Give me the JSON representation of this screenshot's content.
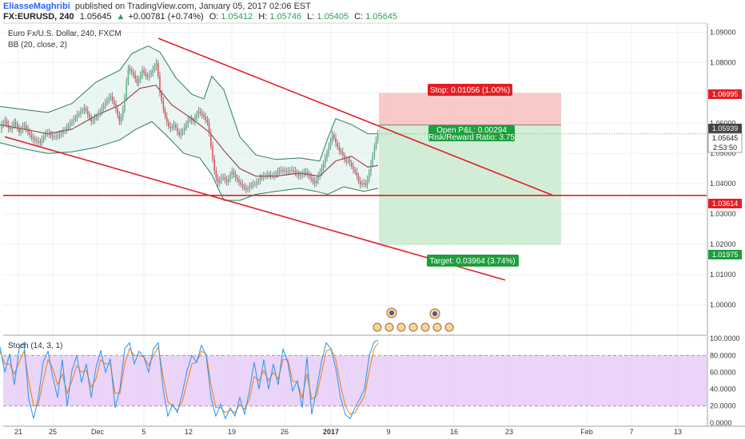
{
  "header": {
    "author": "EliasseMaghribi",
    "published_text": "published on TradingView.com, January 05, 2017 02:06 EST",
    "symbol": "FX:EURUSD, 240",
    "last": "1.05645",
    "change": "+0.00781 (+0.74%)",
    "o_label": "O:",
    "o": "1.05412",
    "h_label": "H:",
    "h": "1.05746",
    "l_label": "L:",
    "l": "1.05405",
    "c_label": "C:",
    "c": "1.05645"
  },
  "legend": {
    "main": "Euro Fx/U.S. Dollar, 240, FXCM",
    "bb": "BB (20, close, 2)",
    "stoch": "Stoch (14, 3, 1)"
  },
  "position": {
    "stop_label": "Stop: 0.01056 (1.00%)",
    "pl_label": "Open P&L: 0.00294",
    "rr_label": "Risk/Reward Ratio: 3.75",
    "target_label": "Target: 0.03964 (3.74%)"
  },
  "price_tags": {
    "stop": "1.06995",
    "entry": "1.05939",
    "last": "1.05645",
    "timer": "2:53:50",
    "support": "1.03614",
    "target": "1.01975"
  },
  "colors": {
    "up": "#53b987",
    "down": "#eb4d5c",
    "red": "#e31e24",
    "band": "#2e7d57",
    "mid": "#8b2c2c",
    "stop_fill": "#f8c3c3",
    "target_fill": "#cdebd0",
    "stoch_fill": "#e6cdf7",
    "k_line": "#2196f3",
    "d_line": "#f57c00"
  },
  "chart_data": [
    {
      "type": "candlestick",
      "title": "Euro Fx/U.S. Dollar, 240, FXCM",
      "ylim": [
        0.99,
        1.093
      ],
      "y_ticks": [
        1.0,
        1.01,
        1.02,
        1.03,
        1.04,
        1.05,
        1.06,
        1.07,
        1.08,
        1.09
      ],
      "y_tick_labels": [
        "1.00000",
        "1.01000",
        "1.02000",
        "1.03000",
        "1.04000",
        "1.05000",
        "1.06000",
        "1.07000",
        "1.08000",
        "1.09000"
      ],
      "x_ticks": [
        "21",
        "25",
        "Dec",
        "5",
        "12",
        "19",
        "26",
        "2017",
        "9",
        "16",
        "23",
        "Feb",
        "7",
        "13"
      ],
      "close_path": [
        [
          0,
          1.0585
        ],
        [
          6,
          1.061
        ],
        [
          12,
          1.0575
        ],
        [
          18,
          1.0605
        ],
        [
          24,
          1.057
        ],
        [
          30,
          1.0595
        ],
        [
          36,
          1.0565
        ],
        [
          42,
          1.0545
        ],
        [
          50,
          1.0535
        ],
        [
          58,
          1.057
        ],
        [
          66,
          1.0555
        ],
        [
          74,
          1.056
        ],
        [
          82,
          1.058
        ],
        [
          90,
          1.0605
        ],
        [
          98,
          1.063
        ],
        [
          106,
          1.065
        ],
        [
          114,
          1.0605
        ],
        [
          122,
          1.0625
        ],
        [
          130,
          1.066
        ],
        [
          138,
          1.069
        ],
        [
          144,
          1.0655
        ],
        [
          150,
          1.06
        ],
        [
          155,
          1.066
        ],
        [
          160,
          1.078
        ],
        [
          166,
          1.0765
        ],
        [
          172,
          1.073
        ],
        [
          178,
          1.0775
        ],
        [
          184,
          1.075
        ],
        [
          190,
          1.077
        ],
        [
          196,
          1.08
        ],
        [
          200,
          1.07
        ],
        [
          206,
          1.0625
        ],
        [
          212,
          1.058
        ],
        [
          218,
          1.0595
        ],
        [
          224,
          1.056
        ],
        [
          230,
          1.058
        ],
        [
          236,
          1.0615
        ],
        [
          242,
          1.0605
        ],
        [
          248,
          1.064
        ],
        [
          254,
          1.0625
        ],
        [
          260,
          1.06
        ],
        [
          264,
          1.052
        ],
        [
          268,
          1.0445
        ],
        [
          272,
          1.04
        ],
        [
          278,
          1.0425
        ],
        [
          284,
          1.0405
        ],
        [
          290,
          1.044
        ],
        [
          296,
          1.0415
        ],
        [
          302,
          1.0395
        ],
        [
          308,
          1.038
        ],
        [
          314,
          1.0395
        ],
        [
          320,
          1.04
        ],
        [
          326,
          1.042
        ],
        [
          334,
          1.043
        ],
        [
          342,
          1.0425
        ],
        [
          350,
          1.0445
        ],
        [
          358,
          1.044
        ],
        [
          366,
          1.0445
        ],
        [
          374,
          1.0425
        ],
        [
          382,
          1.044
        ],
        [
          388,
          1.042
        ],
        [
          394,
          1.04
        ],
        [
          398,
          1.0425
        ],
        [
          404,
          1.046
        ],
        [
          410,
          1.051
        ],
        [
          416,
          1.0565
        ],
        [
          420,
          1.0535
        ],
        [
          424,
          1.051
        ],
        [
          428,
          1.05
        ],
        [
          432,
          1.047
        ],
        [
          436,
          1.048
        ],
        [
          440,
          1.0455
        ],
        [
          446,
          1.043
        ],
        [
          450,
          1.0395
        ],
        [
          454,
          1.0405
        ],
        [
          458,
          1.0395
        ],
        [
          462,
          1.044
        ],
        [
          466,
          1.049
        ],
        [
          470,
          1.054
        ],
        [
          473,
          1.05645
        ]
      ],
      "bb_upper": [
        [
          0,
          1.0655
        ],
        [
          30,
          1.0645
        ],
        [
          60,
          1.0635
        ],
        [
          90,
          1.0665
        ],
        [
          120,
          1.0735
        ],
        [
          150,
          1.0775
        ],
        [
          165,
          1.083
        ],
        [
          185,
          1.0855
        ],
        [
          200,
          1.0835
        ],
        [
          220,
          1.075
        ],
        [
          240,
          1.0695
        ],
        [
          255,
          1.068
        ],
        [
          265,
          1.0755
        ],
        [
          280,
          1.071
        ],
        [
          300,
          1.0555
        ],
        [
          320,
          1.0495
        ],
        [
          345,
          1.048
        ],
        [
          375,
          1.0485
        ],
        [
          400,
          1.0475
        ],
        [
          410,
          1.055
        ],
        [
          420,
          1.0615
        ],
        [
          440,
          1.0595
        ],
        [
          460,
          1.0565
        ],
        [
          473,
          1.0565
        ]
      ],
      "bb_lower": [
        [
          0,
          1.0535
        ],
        [
          30,
          1.0515
        ],
        [
          60,
          1.05
        ],
        [
          90,
          1.0505
        ],
        [
          120,
          1.052
        ],
        [
          150,
          1.0545
        ],
        [
          170,
          1.058
        ],
        [
          190,
          1.0605
        ],
        [
          210,
          1.0555
        ],
        [
          230,
          1.05
        ],
        [
          250,
          1.0485
        ],
        [
          265,
          1.043
        ],
        [
          280,
          1.0345
        ],
        [
          300,
          1.0345
        ],
        [
          320,
          1.0365
        ],
        [
          345,
          1.0375
        ],
        [
          375,
          1.0385
        ],
        [
          395,
          1.0375
        ],
        [
          410,
          1.0365
        ],
        [
          430,
          1.039
        ],
        [
          455,
          1.0375
        ],
        [
          473,
          1.0385
        ]
      ],
      "bb_mid": [
        [
          0,
          1.0595
        ],
        [
          30,
          1.058
        ],
        [
          60,
          1.0565
        ],
        [
          90,
          1.058
        ],
        [
          120,
          1.0625
        ],
        [
          150,
          1.066
        ],
        [
          175,
          1.0715
        ],
        [
          195,
          1.0725
        ],
        [
          215,
          1.066
        ],
        [
          240,
          1.0615
        ],
        [
          262,
          1.057
        ],
        [
          280,
          1.051
        ],
        [
          300,
          1.045
        ],
        [
          320,
          1.0425
        ],
        [
          345,
          1.0425
        ],
        [
          375,
          1.0435
        ],
        [
          400,
          1.0425
        ],
        [
          420,
          1.0475
        ],
        [
          440,
          1.049
        ],
        [
          460,
          1.0455
        ],
        [
          473,
          1.046
        ]
      ],
      "trendlines": [
        {
          "from": [
            198,
            1.088
          ],
          "to": [
            692,
            1.03614
          ]
        },
        {
          "from": [
            6,
            1.0555
          ],
          "to": [
            632,
            1.0082
          ]
        },
        {
          "horizontal": 1.03614
        }
      ],
      "position": {
        "entry": 1.05939,
        "stop": 1.06995,
        "target": 1.01975,
        "start_x": 474,
        "end_x": 702
      }
    },
    {
      "type": "line",
      "title": "Stoch (14, 3, 1)",
      "ylim": [
        -4,
        104
      ],
      "y_ticks": [
        0,
        20,
        40,
        60,
        80,
        100
      ],
      "y_tick_labels": [
        "0.0000",
        "20.0000",
        "40.0000",
        "60.0000",
        "80.0000",
        "100.0000"
      ],
      "levels": [
        20,
        80
      ],
      "k": [
        [
          0,
          90
        ],
        [
          6,
          60
        ],
        [
          12,
          82
        ],
        [
          18,
          45
        ],
        [
          24,
          88
        ],
        [
          30,
          95
        ],
        [
          36,
          28
        ],
        [
          42,
          5
        ],
        [
          48,
          30
        ],
        [
          54,
          72
        ],
        [
          60,
          85
        ],
        [
          66,
          55
        ],
        [
          72,
          30
        ],
        [
          78,
          75
        ],
        [
          84,
          20
        ],
        [
          90,
          62
        ],
        [
          96,
          80
        ],
        [
          102,
          48
        ],
        [
          108,
          70
        ],
        [
          114,
          30
        ],
        [
          120,
          65
        ],
        [
          126,
          86
        ],
        [
          132,
          60
        ],
        [
          138,
          76
        ],
        [
          144,
          18
        ],
        [
          150,
          40
        ],
        [
          156,
          88
        ],
        [
          162,
          95
        ],
        [
          168,
          70
        ],
        [
          174,
          85
        ],
        [
          180,
          78
        ],
        [
          186,
          60
        ],
        [
          192,
          88
        ],
        [
          198,
          95
        ],
        [
          204,
          40
        ],
        [
          210,
          8
        ],
        [
          216,
          22
        ],
        [
          222,
          12
        ],
        [
          228,
          35
        ],
        [
          234,
          62
        ],
        [
          240,
          80
        ],
        [
          246,
          72
        ],
        [
          252,
          92
        ],
        [
          258,
          80
        ],
        [
          264,
          30
        ],
        [
          270,
          8
        ],
        [
          276,
          22
        ],
        [
          282,
          5
        ],
        [
          288,
          18
        ],
        [
          294,
          8
        ],
        [
          300,
          30
        ],
        [
          306,
          10
        ],
        [
          312,
          38
        ],
        [
          318,
          72
        ],
        [
          324,
          40
        ],
        [
          330,
          75
        ],
        [
          336,
          40
        ],
        [
          342,
          70
        ],
        [
          348,
          45
        ],
        [
          354,
          88
        ],
        [
          360,
          72
        ],
        [
          366,
          38
        ],
        [
          372,
          50
        ],
        [
          378,
          18
        ],
        [
          384,
          78
        ],
        [
          390,
          10
        ],
        [
          396,
          40
        ],
        [
          402,
          72
        ],
        [
          408,
          95
        ],
        [
          414,
          88
        ],
        [
          420,
          65
        ],
        [
          426,
          30
        ],
        [
          432,
          10
        ],
        [
          438,
          5
        ],
        [
          444,
          18
        ],
        [
          450,
          28
        ],
        [
          456,
          40
        ],
        [
          462,
          80
        ],
        [
          468,
          96
        ],
        [
          473,
          98
        ]
      ],
      "d": [
        [
          0,
          85
        ],
        [
          6,
          70
        ],
        [
          12,
          70
        ],
        [
          18,
          58
        ],
        [
          24,
          72
        ],
        [
          30,
          85
        ],
        [
          36,
          50
        ],
        [
          42,
          20
        ],
        [
          48,
          22
        ],
        [
          54,
          50
        ],
        [
          60,
          75
        ],
        [
          66,
          65
        ],
        [
          72,
          45
        ],
        [
          78,
          58
        ],
        [
          84,
          35
        ],
        [
          90,
          50
        ],
        [
          96,
          68
        ],
        [
          102,
          60
        ],
        [
          108,
          62
        ],
        [
          114,
          42
        ],
        [
          120,
          52
        ],
        [
          126,
          75
        ],
        [
          132,
          70
        ],
        [
          138,
          70
        ],
        [
          144,
          35
        ],
        [
          150,
          35
        ],
        [
          156,
          70
        ],
        [
          162,
          88
        ],
        [
          168,
          80
        ],
        [
          174,
          80
        ],
        [
          180,
          78
        ],
        [
          186,
          68
        ],
        [
          192,
          80
        ],
        [
          198,
          90
        ],
        [
          204,
          55
        ],
        [
          210,
          25
        ],
        [
          216,
          20
        ],
        [
          222,
          15
        ],
        [
          228,
          25
        ],
        [
          234,
          48
        ],
        [
          240,
          70
        ],
        [
          246,
          72
        ],
        [
          252,
          85
        ],
        [
          258,
          82
        ],
        [
          264,
          45
        ],
        [
          270,
          18
        ],
        [
          276,
          18
        ],
        [
          282,
          12
        ],
        [
          288,
          15
        ],
        [
          294,
          12
        ],
        [
          300,
          22
        ],
        [
          306,
          16
        ],
        [
          312,
          28
        ],
        [
          318,
          55
        ],
        [
          324,
          50
        ],
        [
          330,
          62
        ],
        [
          336,
          50
        ],
        [
          342,
          60
        ],
        [
          348,
          52
        ],
        [
          354,
          75
        ],
        [
          360,
          75
        ],
        [
          366,
          50
        ],
        [
          372,
          48
        ],
        [
          378,
          30
        ],
        [
          384,
          58
        ],
        [
          390,
          28
        ],
        [
          396,
          32
        ],
        [
          402,
          58
        ],
        [
          408,
          85
        ],
        [
          414,
          88
        ],
        [
          420,
          75
        ],
        [
          426,
          45
        ],
        [
          432,
          20
        ],
        [
          438,
          10
        ],
        [
          444,
          12
        ],
        [
          450,
          22
        ],
        [
          456,
          32
        ],
        [
          462,
          62
        ],
        [
          468,
          88
        ],
        [
          473,
          95
        ]
      ]
    }
  ]
}
